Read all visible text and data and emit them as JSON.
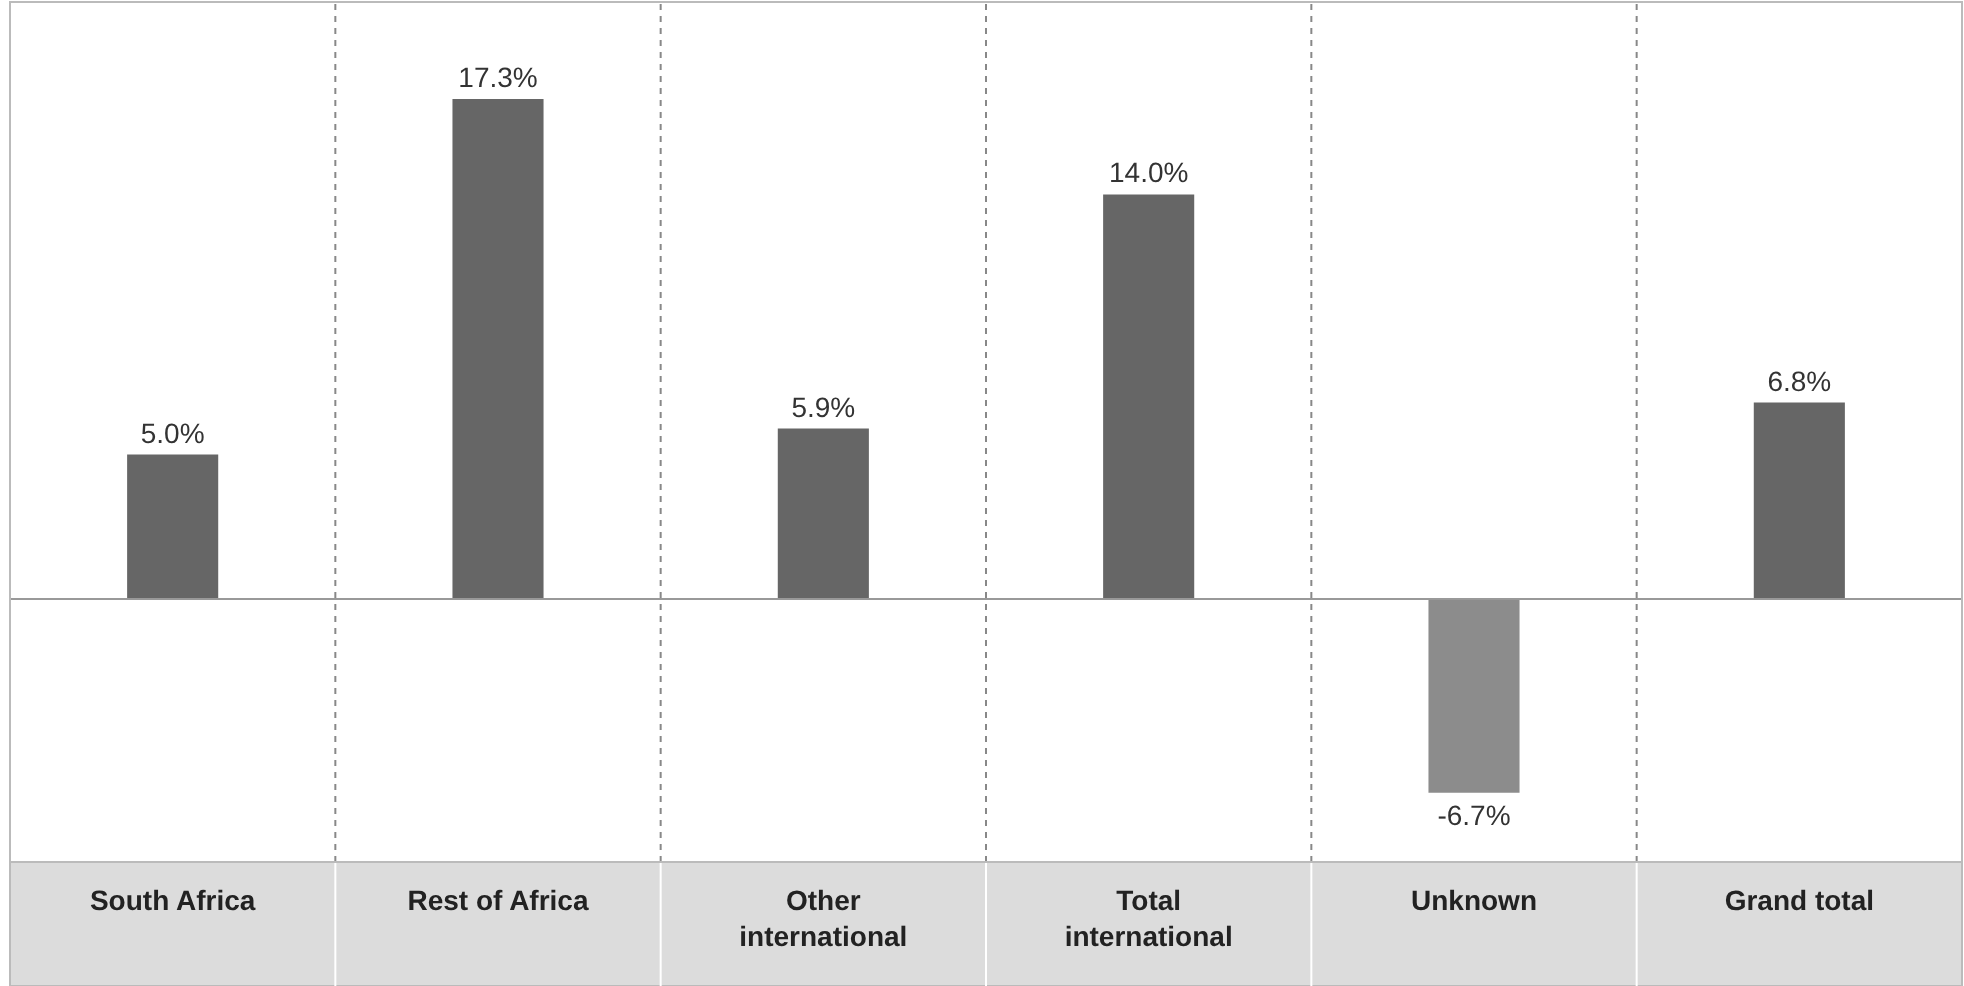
{
  "chart_data": {
    "type": "bar",
    "categories": [
      "South Africa",
      "Rest of Africa",
      "Other international",
      "Total international",
      "Unknown",
      "Grand total"
    ],
    "values": [
      5.0,
      17.3,
      5.9,
      14.0,
      -6.7,
      6.8
    ],
    "colors": [
      "#666666",
      "#666666",
      "#666666",
      "#666666",
      "#8c8c8c",
      "#666666"
    ],
    "value_labels": [
      "5.0%",
      "17.3%",
      "5.9%",
      "14.0%",
      "-6.7%",
      "6.8%"
    ],
    "grid": "x"
  }
}
